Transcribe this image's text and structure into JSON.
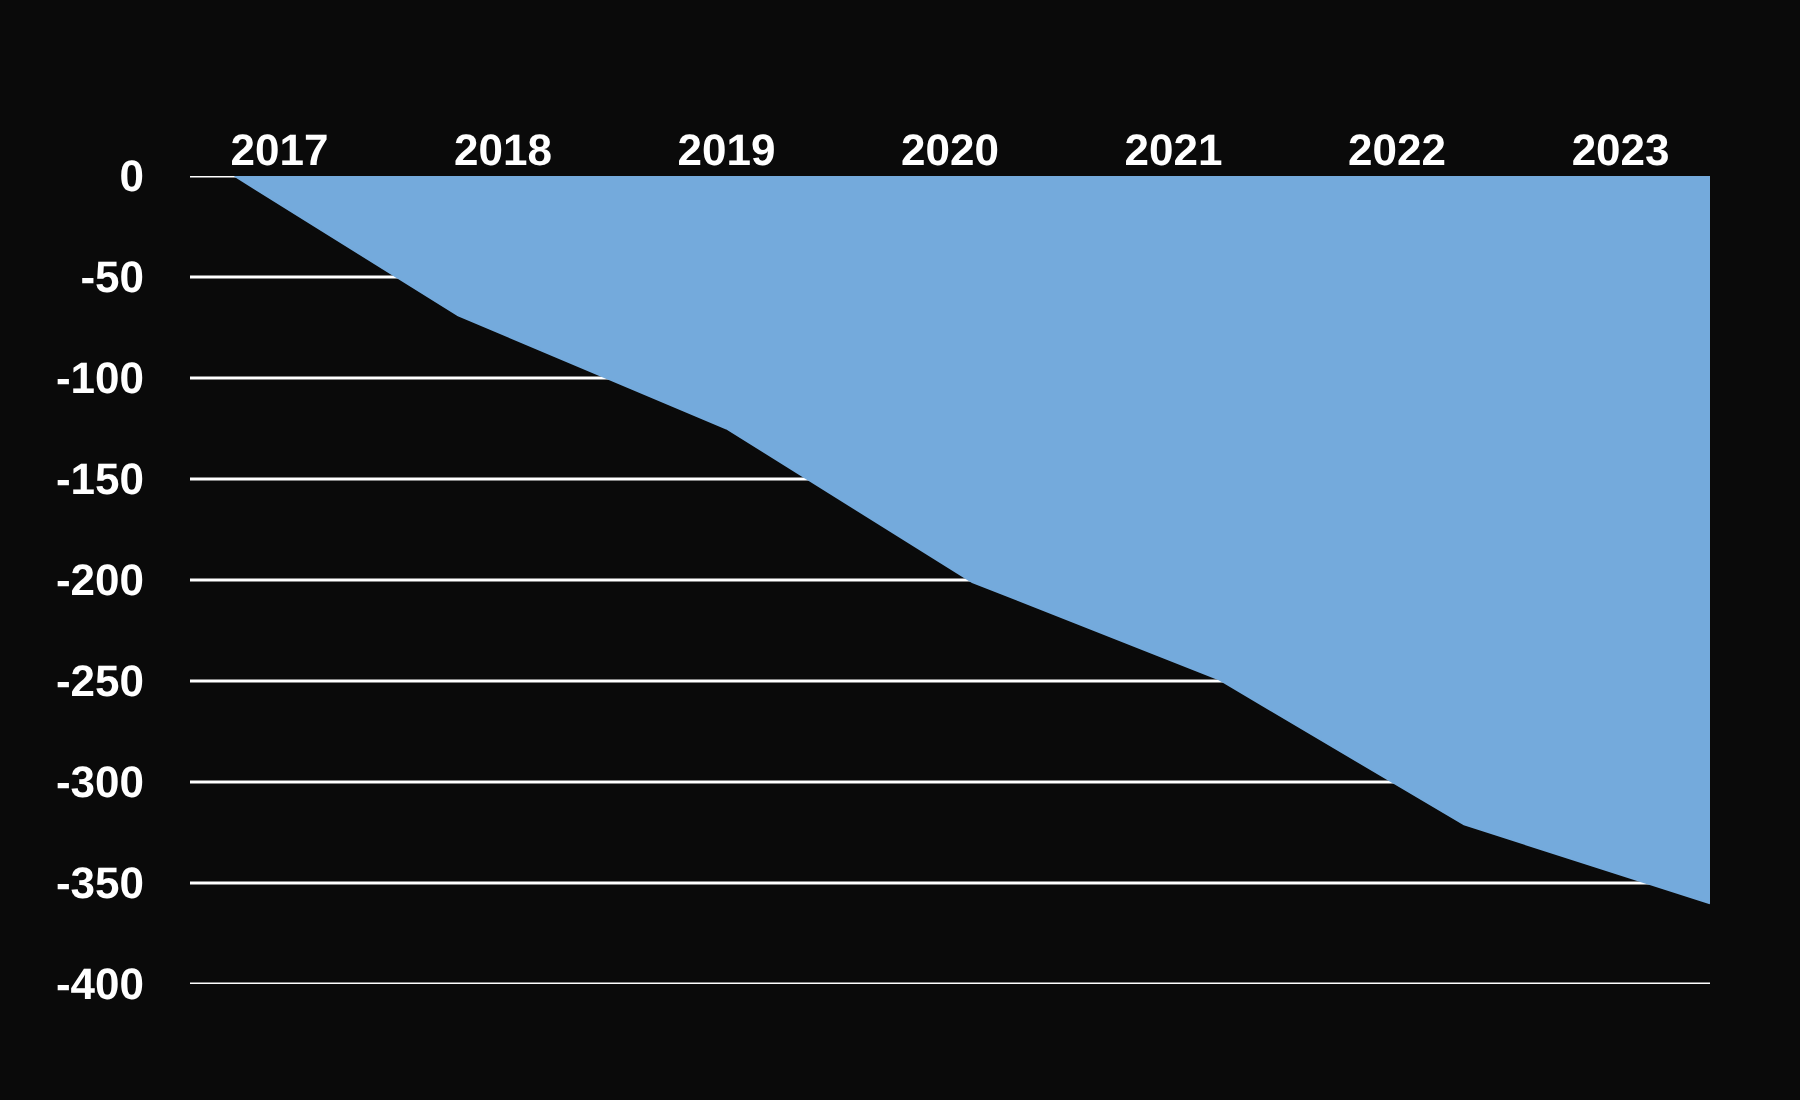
{
  "chart_data": {
    "type": "area",
    "x": [
      2016.8,
      2017.8,
      2019.0,
      2020.1,
      2021.2,
      2022.3,
      2023.4
    ],
    "series": [
      {
        "color": "#74aadc",
        "values": [
          0,
          -69,
          -125,
          -201,
          -249,
          -321,
          -360
        ]
      }
    ],
    "xlim": [
      2016.6,
      2023.4
    ],
    "xticks": [
      2017,
      2018,
      2019,
      2020,
      2021,
      2022,
      2023
    ],
    "ylim": [
      -400,
      0
    ],
    "yticks": [
      0,
      -50,
      -100,
      -150,
      -200,
      -250,
      -300,
      -350,
      -400
    ],
    "grid": "y"
  }
}
